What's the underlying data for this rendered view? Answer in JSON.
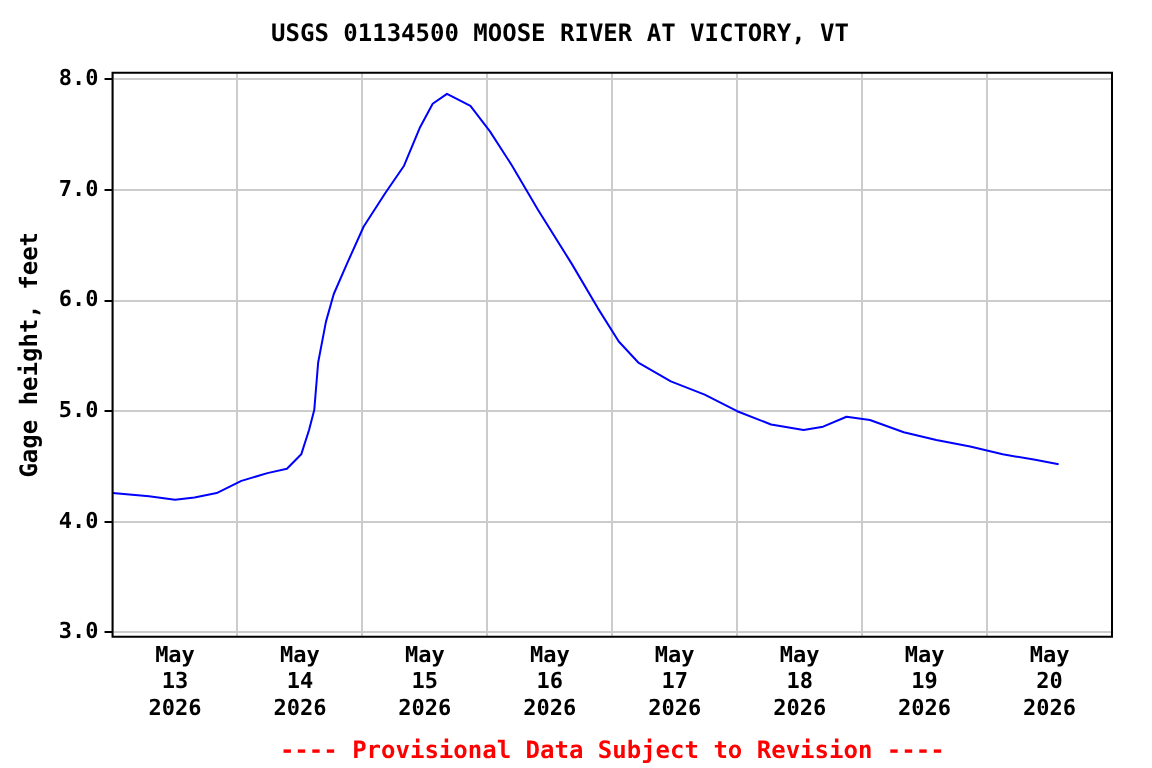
{
  "chart_data": {
    "type": "line",
    "title": "USGS 01134500 MOOSE RIVER AT VICTORY, VT",
    "ylabel": "Gage height, feet",
    "annotations": [
      "---- Provisional Data Subject to Revision ----"
    ],
    "x": [
      "2026-05-13T00:00",
      "2026-05-13T07:00",
      "2026-05-13T12:00",
      "2026-05-13T15:45",
      "2026-05-13T20:00",
      "2026-05-14T00:45",
      "2026-05-14T05:45",
      "2026-05-14T09:30",
      "2026-05-14T12:15",
      "2026-05-14T13:45",
      "2026-05-14T14:45",
      "2026-05-14T15:30",
      "2026-05-14T17:00",
      "2026-05-14T18:30",
      "2026-05-14T21:00",
      "2026-05-15T00:15",
      "2026-05-15T04:30",
      "2026-05-15T08:00",
      "2026-05-15T11:00",
      "2026-05-15T13:30",
      "2026-05-15T16:15",
      "2026-05-15T20:45",
      "2026-05-16T00:30",
      "2026-05-16T04:45",
      "2026-05-16T09:45",
      "2026-05-16T16:15",
      "2026-05-16T21:15",
      "2026-05-17T01:15",
      "2026-05-17T05:00",
      "2026-05-17T11:15",
      "2026-05-17T17:45",
      "2026-05-18T00:00",
      "2026-05-18T06:30",
      "2026-05-18T12:45",
      "2026-05-18T16:30",
      "2026-05-18T21:00",
      "2026-05-19T01:30",
      "2026-05-19T08:00",
      "2026-05-19T14:15",
      "2026-05-19T20:45",
      "2026-05-20T03:00",
      "2026-05-20T09:15",
      "2026-05-20T13:45"
    ],
    "series": [
      {
        "color": "#0000ff",
        "values": [
          4.26,
          4.23,
          4.2,
          4.22,
          4.26,
          4.37,
          4.44,
          4.48,
          4.61,
          4.83,
          5.01,
          5.44,
          5.81,
          6.06,
          6.33,
          6.67,
          6.98,
          7.22,
          7.56,
          7.78,
          7.87,
          7.76,
          7.53,
          7.22,
          6.82,
          6.33,
          5.93,
          5.63,
          5.44,
          5.27,
          5.15,
          5.0,
          4.88,
          4.83,
          4.86,
          4.95,
          4.92,
          4.81,
          4.74,
          4.68,
          4.61,
          4.56,
          4.52
        ]
      }
    ],
    "xlim": [
      "2026-05-13T00:00",
      "2026-05-21T00:00"
    ],
    "xticks": [
      {
        "value": "2026-05-13T00:00",
        "label": null
      },
      {
        "value": "2026-05-13T12:00",
        "label": "May\n13\n2026"
      },
      {
        "value": "2026-05-14T00:00",
        "label": null
      },
      {
        "value": "2026-05-14T12:00",
        "label": "May\n14\n2026"
      },
      {
        "value": "2026-05-15T00:00",
        "label": null
      },
      {
        "value": "2026-05-15T12:00",
        "label": "May\n15\n2026"
      },
      {
        "value": "2026-05-16T00:00",
        "label": null
      },
      {
        "value": "2026-05-16T12:00",
        "label": "May\n16\n2026"
      },
      {
        "value": "2026-05-17T00:00",
        "label": null
      },
      {
        "value": "2026-05-17T12:00",
        "label": "May\n17\n2026"
      },
      {
        "value": "2026-05-18T00:00",
        "label": null
      },
      {
        "value": "2026-05-18T12:00",
        "label": "May\n18\n2026"
      },
      {
        "value": "2026-05-19T00:00",
        "label": null
      },
      {
        "value": "2026-05-19T12:00",
        "label": "May\n19\n2026"
      },
      {
        "value": "2026-05-20T00:00",
        "label": null
      },
      {
        "value": "2026-05-20T12:00",
        "label": "May\n20\n2026"
      },
      {
        "value": "2026-05-21T00:00",
        "label": null
      }
    ],
    "ylim": [
      2.96,
      8.06
    ],
    "yticks": [
      {
        "value": 3,
        "label": "3.0"
      },
      {
        "value": 4,
        "label": "4.0"
      },
      {
        "value": 5,
        "label": "5.0"
      },
      {
        "value": 6,
        "label": "6.0"
      },
      {
        "value": 7,
        "label": "7.0"
      },
      {
        "value": 8,
        "label": "8.0"
      }
    ],
    "grid": true,
    "legend": false,
    "marker": "none",
    "line_style": "solid"
  }
}
